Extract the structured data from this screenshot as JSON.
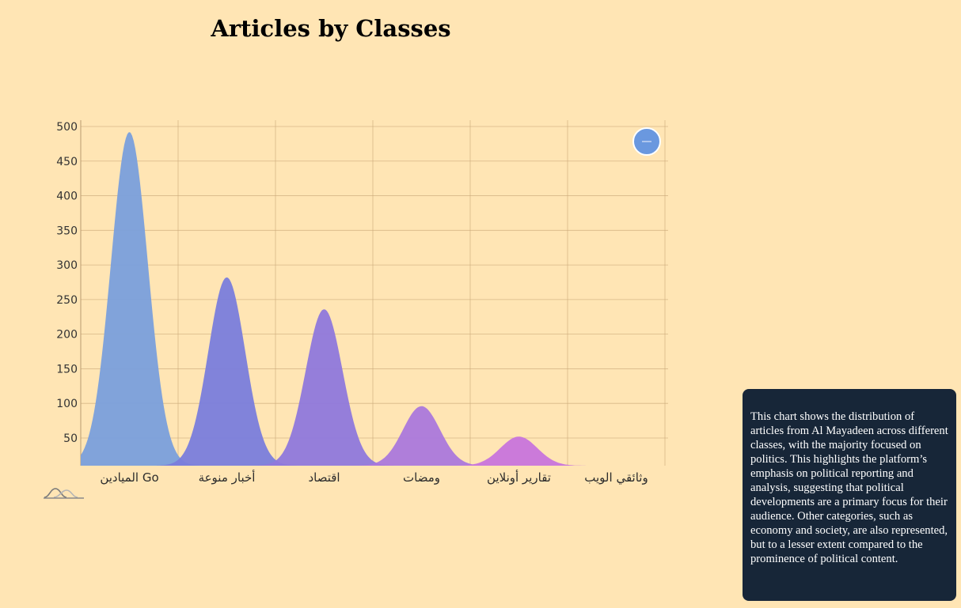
{
  "chart_data": {
    "type": "area",
    "title": "Articles by Classes",
    "xlabel": "",
    "ylabel": "",
    "ylim": [
      10,
      500
    ],
    "yticks": [
      50,
      100,
      150,
      200,
      250,
      300,
      350,
      400,
      450,
      500
    ],
    "grid": true,
    "categories": [
      "الميادين Go",
      "أخبار منوعة",
      "اقتصاد",
      "ومضات",
      "تقارير أونلاين",
      "وثائقي الويب"
    ],
    "values": [
      492,
      282,
      236,
      96,
      52,
      10
    ],
    "colors": [
      "#7a9fdc",
      "#7a7ddc",
      "#8f78dc",
      "#ab78dc",
      "#c874dc",
      "#d870d8"
    ]
  },
  "legend_icon": "minus-icon",
  "logo_icon": "waves-logo-icon",
  "description": "This chart shows the distribution of articles from Al Mayadeen across different classes, with the majority focused on politics. This highlights the platform’s emphasis on political reporting and analysis, suggesting that political developments are a primary focus for their audience. Other categories, such as economy and society, are also represented, but to a lesser extent compared to the prominence of political content."
}
